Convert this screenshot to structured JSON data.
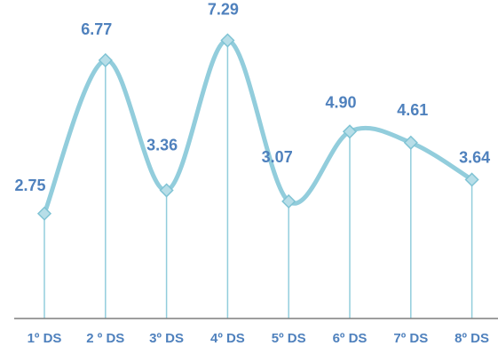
{
  "chart_data": {
    "type": "line",
    "categories": [
      "1º DS",
      "2 º DS",
      "3º DS",
      "4º DS",
      "5º DS",
      "6º DS",
      "7º DS",
      "8º DS"
    ],
    "values": [
      2.75,
      6.77,
      3.36,
      7.29,
      3.07,
      4.9,
      4.61,
      3.64
    ],
    "value_labels": [
      "2.75",
      "6.77",
      "3.36",
      "7.29",
      "3.07",
      "4.90",
      "4.61",
      "3.64"
    ],
    "ylim": [
      0,
      8
    ],
    "grid": false,
    "colors": {
      "line": "#92cddc",
      "marker_fill": "#b7dee8",
      "marker_stroke": "#7fc3d4",
      "drop_line": "#92cddc",
      "axis": "#7f7f7f",
      "label": "#4f81bd"
    }
  }
}
